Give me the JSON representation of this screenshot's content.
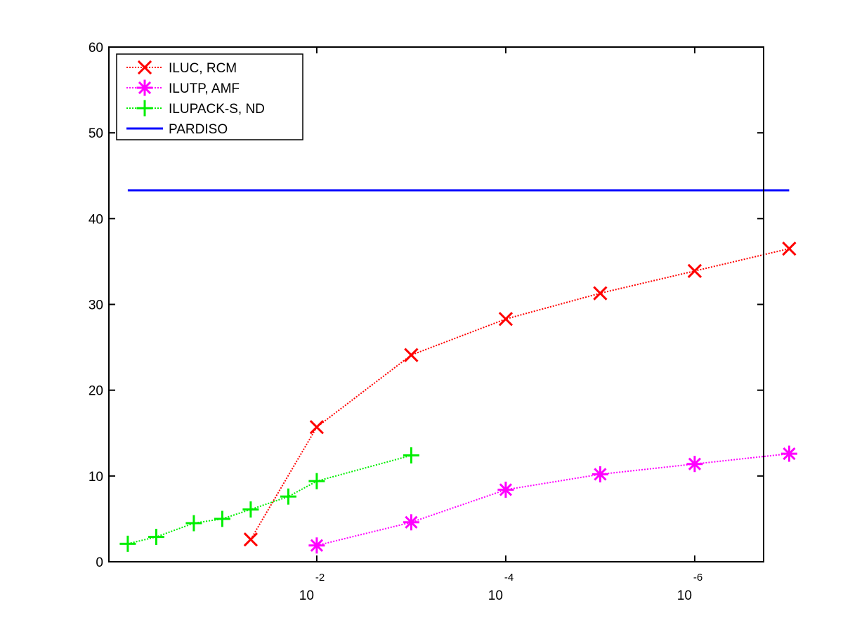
{
  "chart_data": {
    "type": "line",
    "x_scale": "log",
    "x_reversed": true,
    "xlim": [
      1,
      1e-07
    ],
    "ylim": [
      0,
      60
    ],
    "grid": false,
    "legend_position": "top-left",
    "x_tick_labels": [
      {
        "value": 0.01,
        "base": "10",
        "exponent": "-2"
      },
      {
        "value": 0.0001,
        "base": "10",
        "exponent": "-4"
      },
      {
        "value": 1e-06,
        "base": "10",
        "exponent": "-6"
      }
    ],
    "y_ticks": [
      0,
      10,
      20,
      30,
      40,
      50,
      60
    ],
    "series": [
      {
        "name": "ILUC, RCM",
        "color": "#ff0000",
        "marker": "x",
        "line_style": "dotted",
        "points": [
          [
            0.05,
            2.6
          ],
          [
            0.01,
            15.7
          ],
          [
            0.001,
            24.1
          ],
          [
            0.0001,
            28.3
          ],
          [
            1e-05,
            31.3
          ],
          [
            1e-06,
            33.9
          ],
          [
            1e-07,
            36.5
          ]
        ]
      },
      {
        "name": "ILUTP, AMF",
        "color": "#ff00ff",
        "marker": "asterisk",
        "line_style": "dotted",
        "points": [
          [
            0.01,
            1.9
          ],
          [
            0.001,
            4.6
          ],
          [
            0.0001,
            8.4
          ],
          [
            1e-05,
            10.2
          ],
          [
            1e-06,
            11.4
          ],
          [
            1e-07,
            12.6
          ]
        ]
      },
      {
        "name": "ILUPACK-S, ND",
        "color": "#00ee00",
        "marker": "plus",
        "line_style": "dotted",
        "points": [
          [
            1,
            2.1
          ],
          [
            0.5,
            2.9
          ],
          [
            0.2,
            4.5
          ],
          [
            0.1,
            5.0
          ],
          [
            0.05,
            6.1
          ],
          [
            0.02,
            7.6
          ],
          [
            0.01,
            9.4
          ],
          [
            0.001,
            12.4
          ]
        ]
      },
      {
        "name": "PARDISO",
        "color": "#0000ff",
        "marker": "none",
        "line_style": "solid",
        "points": [
          [
            1,
            43.3
          ],
          [
            1e-07,
            43.3
          ]
        ]
      }
    ]
  }
}
